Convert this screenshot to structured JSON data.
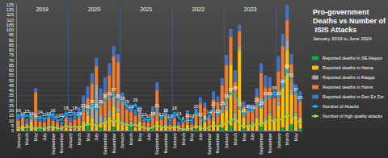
{
  "chart_data": {
    "type": "bar",
    "title": "Pro-government Deaths vs Number of ISIS Attacks",
    "subtitle": "January 2019 to June 2024",
    "categories": [
      "January",
      null,
      "March",
      null,
      "May",
      null,
      "July",
      null,
      "September",
      null,
      "November",
      null,
      "January",
      null,
      "March",
      null,
      "May",
      null,
      "July",
      null,
      "September",
      null,
      "November",
      null,
      "January",
      null,
      "March",
      null,
      "May",
      null,
      "July",
      null,
      "September",
      null,
      "November",
      null,
      "January",
      null,
      "March",
      null,
      "May",
      null,
      "July",
      null,
      "September",
      null,
      "November",
      null,
      "January",
      null,
      "March",
      null,
      "May",
      null,
      "July",
      null,
      "September",
      null,
      "November",
      null,
      "January",
      null,
      "March",
      null,
      "May",
      null
    ],
    "annotations": [
      {
        "text": "2019",
        "from": 0,
        "to": 11
      },
      {
        "text": "2020",
        "from": 12,
        "to": 23
      },
      {
        "text": "2021",
        "from": 24,
        "to": 35
      },
      {
        "text": "2022",
        "from": 36,
        "to": 47
      },
      {
        "text": "2023",
        "from": 48,
        "to": 59
      }
    ],
    "stacked": true,
    "grid": true,
    "legend": "right",
    "ylim": [
      0,
      125
    ],
    "yticks": [
      0,
      5,
      10,
      15,
      20,
      25,
      30,
      35,
      40,
      45,
      50,
      55,
      60,
      65,
      70,
      75,
      80,
      85,
      90,
      95,
      100,
      105,
      110,
      115,
      120,
      125
    ],
    "series": [
      {
        "name": "Reported deaths in SE Aleppo",
        "type": "bar",
        "color": "#00b050",
        "values": [
          0,
          0,
          2,
          0,
          0,
          3,
          0,
          0,
          0,
          2,
          0,
          0,
          0,
          0,
          0,
          0,
          5,
          0,
          0,
          3,
          0,
          0,
          4,
          0,
          0,
          0,
          6,
          0,
          0,
          0,
          0,
          3,
          0,
          0,
          0,
          0,
          0,
          0,
          0,
          0,
          0,
          2,
          0,
          0,
          0,
          0,
          0,
          3,
          0,
          5,
          0,
          0,
          2,
          0,
          0,
          0,
          4,
          0,
          0,
          0,
          0,
          3,
          0,
          6,
          0,
          2
        ]
      },
      {
        "name": "Reported deaths in Hama",
        "type": "bar",
        "color": "#ffc000",
        "values": [
          2,
          5,
          0,
          8,
          3,
          0,
          2,
          0,
          4,
          0,
          0,
          3,
          2,
          0,
          5,
          8,
          10,
          12,
          6,
          4,
          10,
          14,
          20,
          18,
          6,
          4,
          0,
          3,
          8,
          0,
          2,
          0,
          10,
          3,
          5,
          0,
          4,
          0,
          2,
          6,
          0,
          3,
          5,
          8,
          2,
          10,
          6,
          15,
          20,
          60,
          8,
          80,
          10,
          5,
          6,
          12,
          20,
          8,
          15,
          10,
          25,
          40,
          80,
          30,
          15,
          10
        ]
      },
      {
        "name": "Reported deaths in Raqqa",
        "type": "bar",
        "color": "#a5a5a5",
        "values": [
          0,
          2,
          0,
          3,
          0,
          0,
          1,
          5,
          0,
          2,
          0,
          0,
          0,
          3,
          0,
          2,
          5,
          15,
          40,
          8,
          3,
          6,
          10,
          5,
          4,
          2,
          3,
          0,
          2,
          0,
          0,
          1,
          0,
          0,
          2,
          0,
          0,
          0,
          1,
          0,
          0,
          0,
          2,
          0,
          0,
          3,
          0,
          2,
          5,
          3,
          10,
          4,
          2,
          0,
          3,
          2,
          8,
          5,
          3,
          2,
          4,
          6,
          10,
          5,
          3,
          2
        ]
      },
      {
        "name": "Reported deaths in Homs",
        "type": "bar",
        "color": "#ed7d31",
        "values": [
          8,
          6,
          5,
          4,
          35,
          6,
          5,
          8,
          6,
          4,
          5,
          10,
          6,
          8,
          10,
          15,
          12,
          20,
          18,
          15,
          25,
          35,
          40,
          45,
          20,
          15,
          10,
          12,
          10,
          8,
          6,
          15,
          30,
          8,
          10,
          6,
          8,
          6,
          4,
          10,
          6,
          12,
          20,
          15,
          10,
          18,
          22,
          25,
          40,
          25,
          30,
          15,
          10,
          15,
          12,
          20,
          25,
          30,
          25,
          20,
          30,
          35,
          20,
          25,
          20,
          15
        ]
      },
      {
        "name": "Reported deaths in Deir Ez Zor",
        "type": "bar",
        "color": "#4472c4",
        "values": [
          6,
          4,
          5,
          3,
          4,
          6,
          5,
          4,
          8,
          3,
          4,
          5,
          5,
          6,
          8,
          10,
          12,
          10,
          8,
          12,
          15,
          12,
          10,
          8,
          8,
          6,
          5,
          6,
          4,
          3,
          4,
          5,
          8,
          4,
          5,
          3,
          4,
          3,
          2,
          4,
          3,
          5,
          6,
          5,
          4,
          8,
          6,
          7,
          10,
          8,
          12,
          6,
          5,
          6,
          5,
          8,
          10,
          12,
          10,
          8,
          15,
          12,
          15,
          10,
          8,
          10
        ]
      },
      {
        "name": "Number of Attacks",
        "type": "line",
        "color": "#00b0f0",
        "marker": "circle",
        "line_style": "solid",
        "data_labels": true,
        "values": [
          16,
          13,
          15,
          13,
          11,
          14,
          12,
          13,
          16,
          10,
          11,
          18,
          15,
          18,
          13,
          21,
          20,
          25,
          21,
          25,
          30,
          33,
          37,
          30,
          28,
          25,
          20,
          26,
          17,
          12,
          10,
          13,
          21,
          12,
          16,
          10,
          18,
          13,
          8,
          11,
          10,
          20,
          12,
          9,
          14,
          22,
          15,
          23,
          30,
          37,
          38,
          22,
          16,
          20,
          19,
          26,
          23,
          33,
          33,
          38,
          33,
          45,
          60,
          51,
          37,
          29
        ]
      },
      {
        "name": "Number of high quality attacks",
        "type": "line",
        "color": "#92d050",
        "marker": "circle",
        "line_style": "solid",
        "values": [
          3,
          2,
          4,
          3,
          2,
          3,
          2,
          3,
          4,
          2,
          2,
          5,
          3,
          4,
          3,
          5,
          6,
          7,
          5,
          6,
          8,
          9,
          10,
          8,
          7,
          6,
          5,
          6,
          4,
          3,
          2,
          3,
          6,
          3,
          4,
          2,
          4,
          3,
          1,
          2,
          2,
          5,
          3,
          2,
          3,
          6,
          4,
          6,
          8,
          10,
          12,
          6,
          4,
          5,
          5,
          7,
          6,
          9,
          9,
          11,
          10,
          12,
          16,
          14,
          10,
          8
        ]
      }
    ]
  }
}
